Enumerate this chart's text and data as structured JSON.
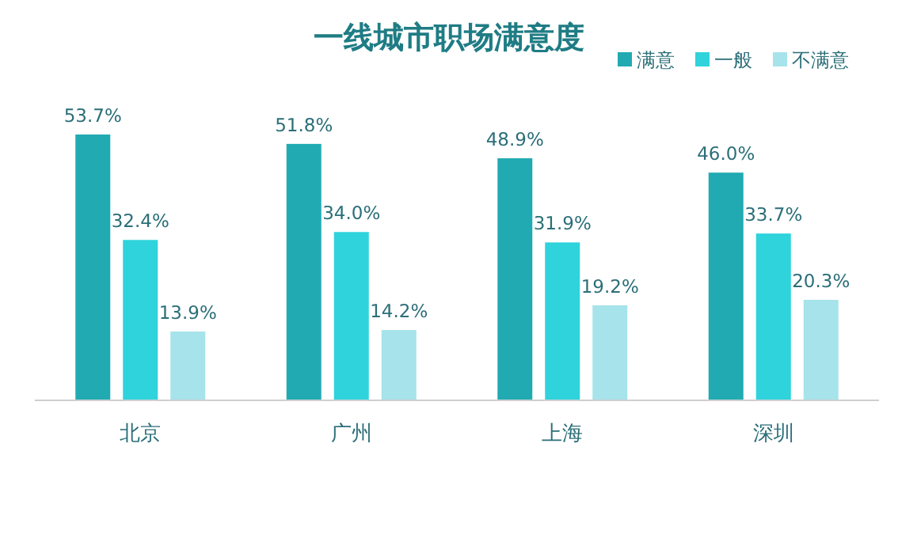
{
  "chart_data": {
    "type": "bar",
    "title": "一线城市职场满意度",
    "categories": [
      "北京",
      "广州",
      "上海",
      "深圳"
    ],
    "series": [
      {
        "name": "满意",
        "color": "#22aab2",
        "values": [
          53.7,
          51.8,
          48.9,
          46.0
        ],
        "value_labels": [
          "53.7%",
          "51.8%",
          "48.9%",
          "46.0%"
        ]
      },
      {
        "name": "一般",
        "color": "#2ed3dc",
        "values": [
          32.4,
          34.0,
          31.9,
          33.7
        ],
        "value_labels": [
          "32.4%",
          "34.0%",
          "31.9%",
          "33.7%"
        ]
      },
      {
        "name": "不满意",
        "color": "#a6e3ea",
        "values": [
          13.9,
          14.2,
          19.2,
          20.3
        ],
        "value_labels": [
          "13.9%",
          "14.2%",
          "19.2%",
          "20.3%"
        ]
      }
    ],
    "legend": "top right"
  }
}
